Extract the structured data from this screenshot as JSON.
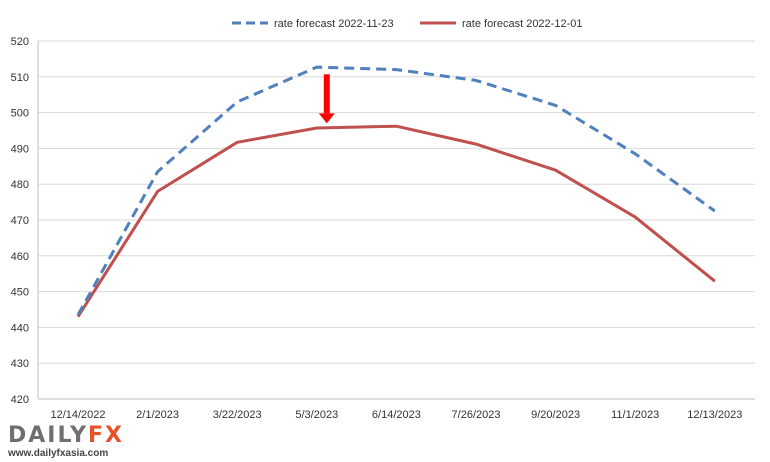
{
  "chart_data": {
    "type": "line",
    "categories": [
      "12/14/2022",
      "2/1/2023",
      "3/22/2023",
      "5/3/2023",
      "6/14/2023",
      "7/26/2023",
      "9/20/2023",
      "11/1/2023",
      "12/13/2023"
    ],
    "series": [
      {
        "name": "rate forecast 2022-11-23",
        "values": [
          443.5,
          483.5,
          503,
          512.7,
          512,
          509,
          502,
          488.5,
          472.5
        ],
        "color": "#4f81bd",
        "style": "dashed"
      },
      {
        "name": "rate forecast 2022-12-01",
        "values": [
          443,
          478,
          491.7,
          495.7,
          496.2,
          491.2,
          483.9,
          470.8,
          452.9
        ],
        "color": "#c0504d",
        "style": "solid"
      }
    ],
    "ylim": [
      420,
      520
    ],
    "yticks": [
      420,
      430,
      440,
      450,
      460,
      470,
      480,
      490,
      500,
      510,
      520
    ],
    "grid": "horizontal",
    "legend_position": "top",
    "annotation": {
      "type": "down-arrow",
      "color": "#ff0000",
      "x_category": "5/3/2023",
      "y_from": 510.7,
      "y_to": 497
    }
  },
  "logo": {
    "brand_part1": "DAILY",
    "brand_part2": "FX",
    "url": "www.dailyfxasia.com"
  }
}
